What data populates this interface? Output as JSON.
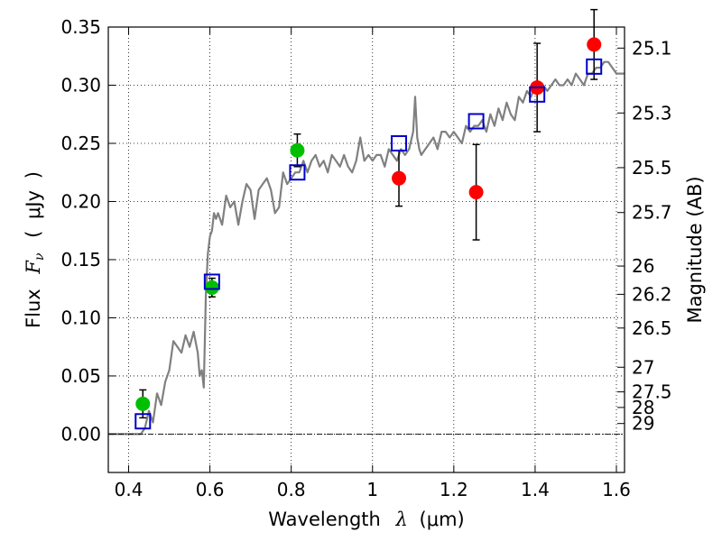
{
  "chart_data": {
    "type": "scatter",
    "title": "",
    "xlabel_parts": {
      "text": "Wavelength",
      "symbol": "λ",
      "unit_open": "(",
      "unit": "μm",
      "unit_close": ")"
    },
    "ylabel_parts": {
      "text": "Flux",
      "symbol": "F",
      "symbol_sub": "ν",
      "unit_open": "(",
      "unit": "μJy",
      "unit_close": ")"
    },
    "y2label": "Magnitude (AB)",
    "xlim": [
      0.35,
      1.62
    ],
    "ylim": [
      -0.033,
      0.35
    ],
    "grid": true,
    "x_ticks": [
      {
        "value": 0.4,
        "label": "0.4"
      },
      {
        "value": 0.6,
        "label": "0.6"
      },
      {
        "value": 0.8,
        "label": "0.8"
      },
      {
        "value": 1.0,
        "label": "1"
      },
      {
        "value": 1.2,
        "label": "1.2"
      },
      {
        "value": 1.4,
        "label": "1.4"
      },
      {
        "value": 1.6,
        "label": "1.6"
      }
    ],
    "y_ticks": [
      {
        "value": 0.0,
        "label": "0.00"
      },
      {
        "value": 0.05,
        "label": "0.05"
      },
      {
        "value": 0.1,
        "label": "0.10"
      },
      {
        "value": 0.15,
        "label": "0.15"
      },
      {
        "value": 0.2,
        "label": "0.20"
      },
      {
        "value": 0.25,
        "label": "0.25"
      },
      {
        "value": 0.3,
        "label": "0.30"
      },
      {
        "value": 0.35,
        "label": "0.35"
      }
    ],
    "y2_ticks": [
      {
        "label": "25.1",
        "flux": 0.3319
      },
      {
        "label": "25.3",
        "flux": 0.2761
      },
      {
        "label": "25.5",
        "flux": 0.2291
      },
      {
        "label": "25.7",
        "flux": 0.1905
      },
      {
        "label": "26",
        "flux": 0.1445
      },
      {
        "label": "26.2",
        "flux": 0.1202
      },
      {
        "label": "26.5",
        "flux": 0.0912
      },
      {
        "label": "27",
        "flux": 0.0575
      },
      {
        "label": "27.5",
        "flux": 0.0363
      },
      {
        "label": "28",
        "flux": 0.0229
      },
      {
        "label": "29",
        "flux": 0.0091
      }
    ],
    "series": [
      {
        "kind": "line",
        "color": "#808080",
        "x": [
          0.35,
          0.4,
          0.43,
          0.44,
          0.45,
          0.46,
          0.47,
          0.48,
          0.49,
          0.5,
          0.51,
          0.52,
          0.53,
          0.54,
          0.55,
          0.56,
          0.57,
          0.575,
          0.58,
          0.585,
          0.59,
          0.595,
          0.6,
          0.605,
          0.61,
          0.615,
          0.62,
          0.63,
          0.64,
          0.65,
          0.66,
          0.67,
          0.68,
          0.69,
          0.7,
          0.71,
          0.72,
          0.73,
          0.74,
          0.75,
          0.76,
          0.77,
          0.78,
          0.79,
          0.8,
          0.81,
          0.82,
          0.83,
          0.84,
          0.85,
          0.86,
          0.87,
          0.88,
          0.89,
          0.9,
          0.91,
          0.92,
          0.93,
          0.94,
          0.95,
          0.96,
          0.97,
          0.98,
          0.99,
          1.0,
          1.01,
          1.02,
          1.03,
          1.04,
          1.05,
          1.06,
          1.07,
          1.08,
          1.09,
          1.1,
          1.105,
          1.11,
          1.115,
          1.12,
          1.13,
          1.14,
          1.15,
          1.16,
          1.17,
          1.18,
          1.19,
          1.2,
          1.21,
          1.22,
          1.23,
          1.24,
          1.25,
          1.26,
          1.27,
          1.28,
          1.29,
          1.3,
          1.31,
          1.32,
          1.33,
          1.34,
          1.35,
          1.36,
          1.37,
          1.38,
          1.39,
          1.4,
          1.41,
          1.42,
          1.43,
          1.44,
          1.45,
          1.46,
          1.47,
          1.48,
          1.49,
          1.5,
          1.51,
          1.52,
          1.53,
          1.54,
          1.55,
          1.56,
          1.57,
          1.58,
          1.59,
          1.6,
          1.61,
          1.62
        ],
        "y": [
          0.0,
          0.0,
          0.0,
          0.005,
          0.02,
          0.01,
          0.035,
          0.025,
          0.045,
          0.055,
          0.08,
          0.075,
          0.07,
          0.085,
          0.075,
          0.088,
          0.07,
          0.05,
          0.055,
          0.04,
          0.12,
          0.155,
          0.17,
          0.175,
          0.19,
          0.185,
          0.19,
          0.18,
          0.205,
          0.195,
          0.2,
          0.18,
          0.2,
          0.215,
          0.21,
          0.185,
          0.21,
          0.215,
          0.22,
          0.21,
          0.19,
          0.195,
          0.225,
          0.215,
          0.22,
          0.225,
          0.225,
          0.235,
          0.225,
          0.235,
          0.24,
          0.23,
          0.235,
          0.225,
          0.24,
          0.235,
          0.23,
          0.24,
          0.23,
          0.225,
          0.235,
          0.255,
          0.235,
          0.24,
          0.235,
          0.24,
          0.24,
          0.23,
          0.245,
          0.24,
          0.235,
          0.245,
          0.24,
          0.245,
          0.26,
          0.29,
          0.255,
          0.245,
          0.24,
          0.245,
          0.25,
          0.255,
          0.245,
          0.26,
          0.26,
          0.255,
          0.26,
          0.255,
          0.25,
          0.265,
          0.26,
          0.265,
          0.265,
          0.27,
          0.26,
          0.275,
          0.265,
          0.28,
          0.27,
          0.285,
          0.275,
          0.27,
          0.29,
          0.285,
          0.295,
          0.29,
          0.3,
          0.295,
          0.3,
          0.295,
          0.3,
          0.305,
          0.3,
          0.3,
          0.305,
          0.3,
          0.31,
          0.305,
          0.3,
          0.31,
          0.31,
          0.315,
          0.315,
          0.32,
          0.32,
          0.315,
          0.31,
          0.31,
          0.31
        ]
      },
      {
        "kind": "markers",
        "marker": "circle",
        "color": "#00bf00",
        "x": [
          0.435,
          0.605,
          0.815
        ],
        "y": [
          0.026,
          0.126,
          0.244
        ],
        "yerr": [
          0.012,
          0.008,
          0.014
        ]
      },
      {
        "kind": "markers",
        "marker": "circle",
        "color": "#ff0000",
        "x": [
          1.065,
          1.255,
          1.405,
          1.545
        ],
        "y": [
          0.22,
          0.208,
          0.298,
          0.335
        ],
        "yerr": [
          0.024,
          0.041,
          0.038,
          0.03
        ]
      },
      {
        "kind": "markers",
        "marker": "square-open",
        "color": "#0000cc",
        "x": [
          0.435,
          0.605,
          0.815,
          1.065,
          1.255,
          1.405,
          1.545
        ],
        "y": [
          0.011,
          0.131,
          0.225,
          0.25,
          0.269,
          0.292,
          0.316
        ]
      }
    ]
  }
}
